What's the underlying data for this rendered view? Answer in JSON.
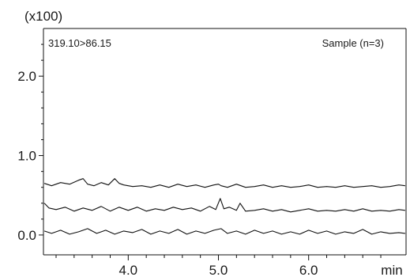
{
  "chart_data": {
    "type": "line",
    "title": "",
    "xlabel": "",
    "ylabel": "",
    "y_multiplier_label": "(x100)",
    "x_unit_label": "min",
    "transition_label": "319.10>86.15",
    "sample_label": "Sample (n=3)",
    "xlim": [
      3.06,
      7.08
    ],
    "ylim": [
      -0.25,
      2.6
    ],
    "x_ticks": [
      4.0,
      5.0,
      6.0
    ],
    "x_tick_labels": [
      "4.0",
      "5.0",
      "6.0"
    ],
    "y_ticks": [
      0.0,
      1.0,
      2.0
    ],
    "y_tick_labels": [
      "0.0",
      "1.0",
      "2.0"
    ],
    "grid": false,
    "series": [
      {
        "x": [
          3.07,
          3.15,
          3.25,
          3.35,
          3.45,
          3.5,
          3.55,
          3.62,
          3.7,
          3.78,
          3.85,
          3.9,
          3.95,
          4.05,
          4.15,
          4.25,
          4.35,
          4.45,
          4.55,
          4.65,
          4.75,
          4.85,
          4.95,
          5.0,
          5.03,
          5.1,
          5.2,
          5.3,
          5.4,
          5.5,
          5.6,
          5.7,
          5.8,
          5.9,
          6.0,
          6.1,
          6.2,
          6.3,
          6.4,
          6.5,
          6.6,
          6.7,
          6.8,
          6.9,
          7.0,
          7.07
        ],
        "y": [
          0.65,
          0.62,
          0.66,
          0.64,
          0.69,
          0.71,
          0.64,
          0.62,
          0.66,
          0.63,
          0.71,
          0.65,
          0.63,
          0.61,
          0.62,
          0.6,
          0.63,
          0.6,
          0.64,
          0.61,
          0.63,
          0.6,
          0.63,
          0.64,
          0.62,
          0.6,
          0.64,
          0.6,
          0.61,
          0.63,
          0.6,
          0.62,
          0.6,
          0.61,
          0.63,
          0.6,
          0.61,
          0.6,
          0.62,
          0.6,
          0.61,
          0.62,
          0.6,
          0.61,
          0.63,
          0.62
        ]
      },
      {
        "x": [
          3.07,
          3.12,
          3.2,
          3.3,
          3.4,
          3.5,
          3.6,
          3.7,
          3.8,
          3.9,
          4.0,
          4.1,
          4.2,
          4.3,
          4.4,
          4.5,
          4.6,
          4.7,
          4.8,
          4.9,
          4.97,
          5.02,
          5.06,
          5.12,
          5.2,
          5.24,
          5.3,
          5.4,
          5.5,
          5.6,
          5.7,
          5.8,
          5.9,
          6.0,
          6.1,
          6.2,
          6.3,
          6.4,
          6.5,
          6.6,
          6.7,
          6.8,
          6.9,
          7.0,
          7.07
        ],
        "y": [
          0.4,
          0.34,
          0.32,
          0.35,
          0.3,
          0.34,
          0.31,
          0.36,
          0.3,
          0.35,
          0.31,
          0.35,
          0.3,
          0.33,
          0.31,
          0.35,
          0.32,
          0.34,
          0.3,
          0.36,
          0.32,
          0.46,
          0.33,
          0.35,
          0.31,
          0.4,
          0.3,
          0.31,
          0.33,
          0.3,
          0.32,
          0.29,
          0.31,
          0.33,
          0.3,
          0.31,
          0.3,
          0.32,
          0.3,
          0.33,
          0.3,
          0.31,
          0.3,
          0.32,
          0.31
        ]
      },
      {
        "x": [
          3.07,
          3.15,
          3.25,
          3.35,
          3.45,
          3.55,
          3.65,
          3.75,
          3.85,
          3.95,
          4.05,
          4.15,
          4.25,
          4.35,
          4.45,
          4.55,
          4.65,
          4.75,
          4.85,
          4.95,
          5.03,
          5.1,
          5.2,
          5.3,
          5.4,
          5.5,
          5.6,
          5.7,
          5.8,
          5.9,
          6.0,
          6.1,
          6.2,
          6.3,
          6.4,
          6.5,
          6.6,
          6.7,
          6.8,
          6.9,
          7.0,
          7.07
        ],
        "y": [
          0.05,
          0.02,
          0.06,
          0.01,
          0.04,
          0.08,
          0.02,
          0.06,
          0.01,
          0.05,
          0.03,
          0.07,
          0.01,
          0.05,
          0.02,
          0.07,
          0.01,
          0.05,
          0.02,
          0.06,
          0.08,
          0.02,
          0.05,
          0.01,
          0.06,
          0.02,
          0.05,
          0.01,
          0.04,
          0.01,
          0.06,
          0.02,
          0.05,
          0.01,
          0.04,
          0.02,
          0.07,
          0.01,
          0.04,
          0.02,
          0.03,
          0.02
        ]
      }
    ]
  }
}
